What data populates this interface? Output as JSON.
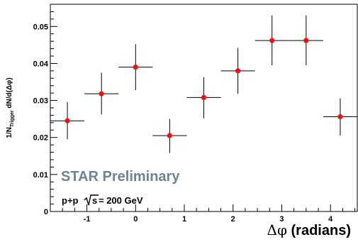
{
  "chart_data": {
    "type": "scatter",
    "ylabel_main": "1/N",
    "ylabel_sub": "Trigger",
    "ylabel_rest": " dN/d(Δφ)",
    "xlabel_symbol": "Δφ",
    "xlabel_unit": " (radians)",
    "xlim": [
      -1.75,
      4.55
    ],
    "ylim": [
      0,
      0.056
    ],
    "x_ticks": [
      -1,
      0,
      1,
      2,
      3,
      4
    ],
    "x_tick_labels": [
      "-1",
      "0",
      "1",
      "2",
      "3",
      "4"
    ],
    "y_ticks": [
      0,
      0.01,
      0.02,
      0.03,
      0.04,
      0.05
    ],
    "y_tick_labels": [
      "0",
      "0.01",
      "0.02",
      "0.03",
      "0.04",
      "0.05"
    ],
    "grid": false,
    "series": [
      {
        "x": [
          -1.4,
          -0.7,
          0.0,
          0.7,
          1.4,
          2.1,
          2.8,
          3.5,
          4.2
        ],
        "y": [
          0.0245,
          0.0318,
          0.039,
          0.0205,
          0.0308,
          0.038,
          0.0462,
          0.0462,
          0.0256
        ],
        "y_low": [
          0.0195,
          0.0262,
          0.0328,
          0.0158,
          0.0252,
          0.0318,
          0.0395,
          0.0395,
          0.0205
        ],
        "y_high": [
          0.0296,
          0.0375,
          0.0452,
          0.025,
          0.0363,
          0.0442,
          0.053,
          0.053,
          0.0306
        ],
        "x_half_width": 0.35,
        "marker_color": "#ee1111",
        "errorbar_color": "#000000"
      }
    ],
    "annotations": {
      "preliminary": "STAR Preliminary",
      "preliminary_color": "#6f8394",
      "energy_prefix": "p+p ",
      "energy_root": "s",
      "energy_suffix": " = 200 GeV"
    }
  }
}
